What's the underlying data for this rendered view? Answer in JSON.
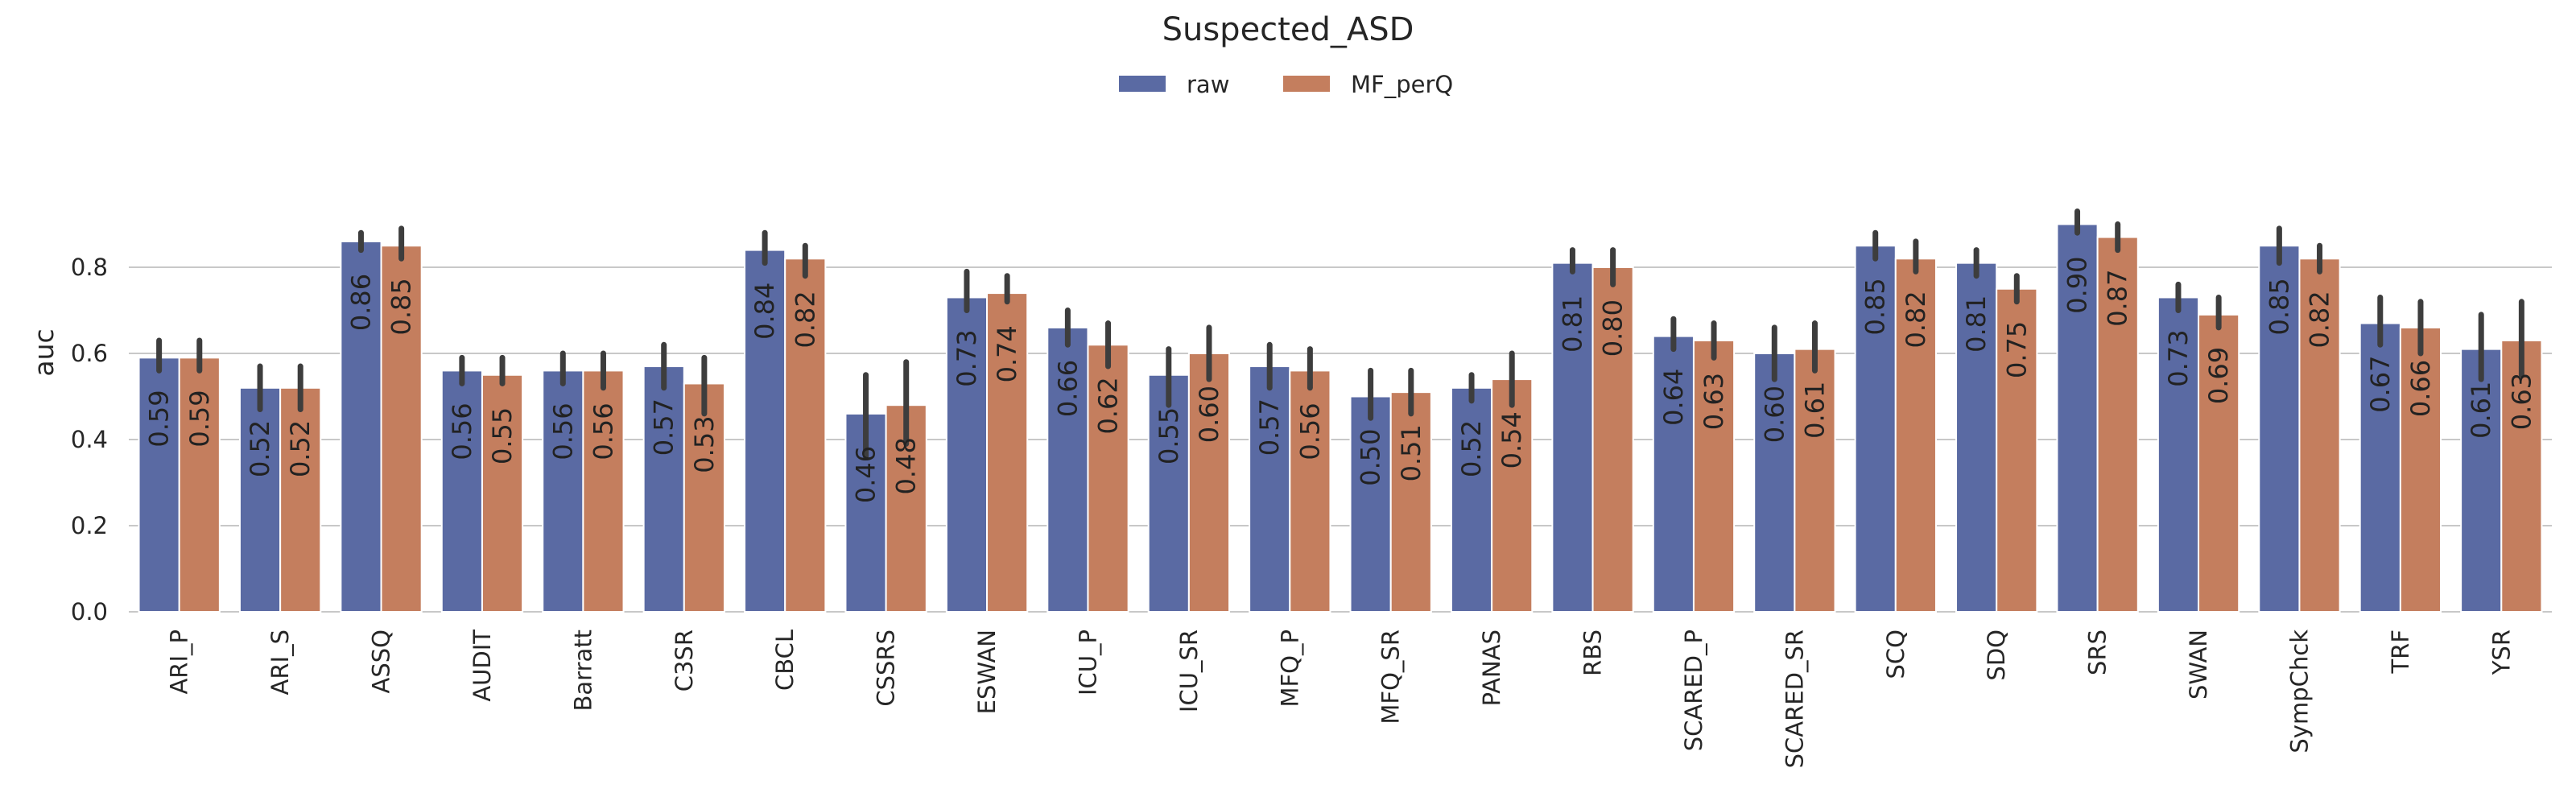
{
  "chart_data": {
    "type": "bar",
    "title": "Suspected_ASD",
    "xlabel": "",
    "ylabel": "auc",
    "ylim": [
      0,
      0.95
    ],
    "yticks": [
      "0.0",
      "0.2",
      "0.4",
      "0.6",
      "0.8"
    ],
    "grid": true,
    "legend": "top-center",
    "categories": [
      "ARI_P",
      "ARI_S",
      "ASSQ",
      "AUDIT",
      "Barratt",
      "C3SR",
      "CBCL",
      "CSSRS",
      "ESWAN",
      "ICU_P",
      "ICU_SR",
      "MFQ_P",
      "MFQ_SR",
      "PANAS",
      "RBS",
      "SCARED_P",
      "SCARED_SR",
      "SCQ",
      "SDQ",
      "SRS",
      "SWAN",
      "SympChck",
      "TRF",
      "YSR"
    ],
    "series": [
      {
        "name": "raw",
        "color": "#5a6aa3",
        "values": [
          0.59,
          0.52,
          0.86,
          0.56,
          0.56,
          0.57,
          0.84,
          0.46,
          0.73,
          0.66,
          0.55,
          0.57,
          0.5,
          0.52,
          0.81,
          0.64,
          0.6,
          0.85,
          0.81,
          0.9,
          0.73,
          0.85,
          0.67,
          0.61
        ],
        "labels": [
          "0.59",
          "0.52",
          "0.86",
          "0.56",
          "0.56",
          "0.57",
          "0.84",
          "0.46",
          "0.73",
          "0.66",
          "0.55",
          "0.57",
          "0.50",
          "0.52",
          "0.81",
          "0.64",
          "0.60",
          "0.85",
          "0.81",
          "0.90",
          "0.73",
          "0.85",
          "0.67",
          "0.61"
        ],
        "err_low": [
          0.56,
          0.47,
          0.84,
          0.53,
          0.53,
          0.52,
          0.81,
          0.36,
          0.7,
          0.62,
          0.48,
          0.52,
          0.45,
          0.49,
          0.79,
          0.61,
          0.54,
          0.82,
          0.78,
          0.88,
          0.7,
          0.81,
          0.62,
          0.54
        ],
        "err_high": [
          0.63,
          0.57,
          0.88,
          0.59,
          0.6,
          0.62,
          0.88,
          0.55,
          0.79,
          0.7,
          0.61,
          0.62,
          0.56,
          0.55,
          0.84,
          0.68,
          0.66,
          0.88,
          0.84,
          0.93,
          0.76,
          0.89,
          0.73,
          0.69
        ]
      },
      {
        "name": "MF_perQ",
        "color": "#c47e5e",
        "values": [
          0.59,
          0.52,
          0.85,
          0.55,
          0.56,
          0.53,
          0.82,
          0.48,
          0.74,
          0.62,
          0.6,
          0.56,
          0.51,
          0.54,
          0.8,
          0.63,
          0.61,
          0.82,
          0.75,
          0.87,
          0.69,
          0.82,
          0.66,
          0.63
        ],
        "labels": [
          "0.59",
          "0.52",
          "0.85",
          "0.55",
          "0.56",
          "0.53",
          "0.82",
          "0.48",
          "0.74",
          "0.62",
          "0.60",
          "0.56",
          "0.51",
          "0.54",
          "0.80",
          "0.63",
          "0.61",
          "0.82",
          "0.75",
          "0.87",
          "0.69",
          "0.82",
          "0.66",
          "0.63"
        ],
        "err_low": [
          0.56,
          0.47,
          0.82,
          0.53,
          0.52,
          0.46,
          0.78,
          0.39,
          0.72,
          0.57,
          0.54,
          0.52,
          0.46,
          0.48,
          0.76,
          0.59,
          0.56,
          0.79,
          0.72,
          0.84,
          0.66,
          0.79,
          0.6,
          0.55
        ],
        "err_high": [
          0.63,
          0.57,
          0.89,
          0.59,
          0.6,
          0.59,
          0.85,
          0.58,
          0.78,
          0.67,
          0.66,
          0.61,
          0.56,
          0.6,
          0.84,
          0.67,
          0.67,
          0.86,
          0.78,
          0.9,
          0.73,
          0.85,
          0.72,
          0.72
        ]
      }
    ]
  }
}
